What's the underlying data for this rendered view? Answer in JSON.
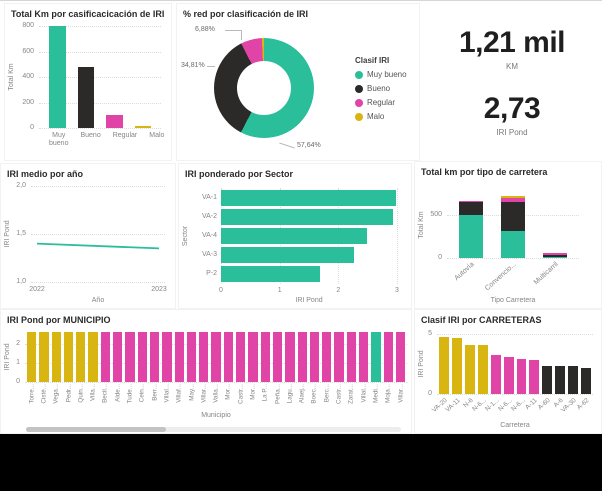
{
  "colors": {
    "muy_bueno": "#2BBE9B",
    "bueno": "#2B2A29",
    "regular": "#E044A7",
    "malo": "#D8B511",
    "axis_text": "#868686",
    "title_text": "#2B2B2B"
  },
  "kpis": [
    {
      "value": "1,21 mil",
      "label": "KM"
    },
    {
      "value": "2,73",
      "label": "IRI Pond"
    }
  ],
  "chart_data": [
    {
      "id": "km-por-clasificacion",
      "type": "bar",
      "title": "Total Km por casificacicación de IRI",
      "categories": [
        "Muy bueno",
        "Bueno",
        "Regular",
        "Malo"
      ],
      "values": [
        800,
        480,
        100,
        15
      ],
      "bar_colors": [
        "muy_bueno",
        "bueno",
        "regular",
        "malo"
      ],
      "xlabel": "",
      "ylabel": "Total Km",
      "ylim": [
        0,
        800
      ],
      "yticks": [
        0,
        200,
        400,
        600,
        800
      ],
      "ytick_labels": [
        "0",
        "200",
        "400",
        "600",
        "800"
      ]
    },
    {
      "id": "pct-red-por-clasificacion",
      "type": "donut",
      "title": "% red por clasificación de IRI",
      "legend_title": "Clasif IRI",
      "labels": [
        "Muy bueno",
        "Bueno",
        "Regular",
        "Malo"
      ],
      "values": [
        57.64,
        34.81,
        6.88,
        0.67
      ],
      "slice_colors": [
        "muy_bueno",
        "bueno",
        "regular",
        "malo"
      ],
      "callouts": {
        "muy_bueno": "57,64%",
        "bueno": "34,81%",
        "regular": "6,88%"
      },
      "legend_position": "right"
    },
    {
      "id": "iri-medio-por-ano",
      "type": "line",
      "title": "IRI medio por año",
      "x": [
        "2022",
        "2023"
      ],
      "values": [
        1.4,
        1.35
      ],
      "xlabel": "Año",
      "ylabel": "IRI Pond",
      "ylim": [
        1.0,
        2.0
      ],
      "yticks": [
        1.0,
        1.5,
        2.0
      ],
      "ytick_labels": [
        "1,0",
        "1,5",
        "2,0"
      ],
      "line_color": "muy_bueno"
    },
    {
      "id": "iri-ponderado-por-sector",
      "type": "hbar",
      "title": "IRI ponderado por Sector",
      "categories": [
        "VA-1",
        "VA-2",
        "VA-4",
        "VA-3",
        "P-2"
      ],
      "values": [
        2.98,
        2.93,
        2.48,
        2.27,
        1.69
      ],
      "bar_color": "muy_bueno",
      "xlabel": "IRI Pond",
      "ylabel": "Sector",
      "xlim": [
        0,
        3
      ],
      "xticks": [
        0,
        1,
        2,
        3
      ]
    },
    {
      "id": "total-km-por-tipo-carretera",
      "type": "stacked-bar",
      "title": "Total km por tipo de carretera",
      "categories": [
        "Autovía",
        "Convencio...",
        "Multicarril"
      ],
      "series": [
        {
          "name": "Muy bueno",
          "color": "muy_bueno",
          "values": [
            490,
            310,
            12
          ]
        },
        {
          "name": "Bueno",
          "color": "bueno",
          "values": [
            150,
            330,
            22
          ]
        },
        {
          "name": "Regular",
          "color": "regular",
          "values": [
            12,
            55,
            20
          ]
        },
        {
          "name": "Malo",
          "color": "malo",
          "values": [
            0,
            15,
            0
          ]
        }
      ],
      "xlabel": "Tipo Carretera",
      "ylabel": "Total Km",
      "ylim": [
        0,
        760
      ],
      "yticks": [
        0,
        500
      ],
      "ytick_labels": [
        "0",
        "500"
      ]
    },
    {
      "id": "iri-pond-por-municipio",
      "type": "bar",
      "title": "IRI Pond por MUNICIPIO",
      "categories": [
        "Torre...",
        "Cisté...",
        "Vega...",
        "Pedr...",
        "Quin...",
        "Villa...",
        "Becil...",
        "Alde...",
        "Tude...",
        "Cein...",
        "Berr...",
        "Villal...",
        "Villaf...",
        "May...",
        "Villar...",
        "Valla...",
        "Mor...",
        "Castr...",
        "Mor...",
        "La P...",
        "Peña...",
        "Lagu...",
        "Alaej...",
        "Boec...",
        "Berc...",
        "Castr...",
        "Zarat...",
        "Villal...",
        "Medi...",
        "Moja...",
        "Villar..."
      ],
      "values": [
        2.6,
        2.6,
        2.6,
        2.6,
        2.6,
        2.6,
        2.6,
        2.6,
        2.6,
        2.6,
        2.6,
        2.6,
        2.6,
        2.6,
        2.6,
        2.6,
        2.6,
        2.6,
        2.6,
        2.6,
        2.6,
        2.6,
        2.6,
        2.6,
        2.6,
        2.6,
        2.6,
        2.6,
        2.6,
        2.6,
        2.6
      ],
      "bar_colors": [
        "malo",
        "malo",
        "malo",
        "malo",
        "malo",
        "malo",
        "regular",
        "regular",
        "regular",
        "regular",
        "regular",
        "regular",
        "regular",
        "regular",
        "regular",
        "regular",
        "regular",
        "regular",
        "regular",
        "regular",
        "regular",
        "regular",
        "regular",
        "regular",
        "regular",
        "regular",
        "regular",
        "regular",
        "muy_bueno",
        "regular",
        "regular"
      ],
      "xlabel": "Municipio",
      "ylabel": "IRI Pond",
      "ylim": [
        0,
        2.6
      ],
      "yticks": [
        0,
        1,
        2
      ],
      "ytick_labels": [
        "0",
        "1",
        "2"
      ]
    },
    {
      "id": "clasif-iri-por-carreteras",
      "type": "bar",
      "title": "Clasif IRI por CARRETERAS",
      "categories": [
        "VA-20",
        "VA-11",
        "N-6",
        "N-6...",
        "N-1...",
        "N-6...",
        "N-6...",
        "A-11",
        "A-60",
        "A-6",
        "VA-30",
        "A-62"
      ],
      "values": [
        4.75,
        4.65,
        4.1,
        4.05,
        3.25,
        3.1,
        2.95,
        2.85,
        2.35,
        2.3,
        2.3,
        2.15
      ],
      "bar_colors": [
        "malo",
        "malo",
        "malo",
        "malo",
        "regular",
        "regular",
        "regular",
        "regular",
        "bueno",
        "bueno",
        "bueno",
        "bueno"
      ],
      "xlabel": "Carretera",
      "ylabel": "IRI Pond",
      "ylim": [
        0,
        5
      ],
      "yticks": [
        0,
        5
      ],
      "ytick_labels": [
        "0",
        "5"
      ]
    }
  ]
}
